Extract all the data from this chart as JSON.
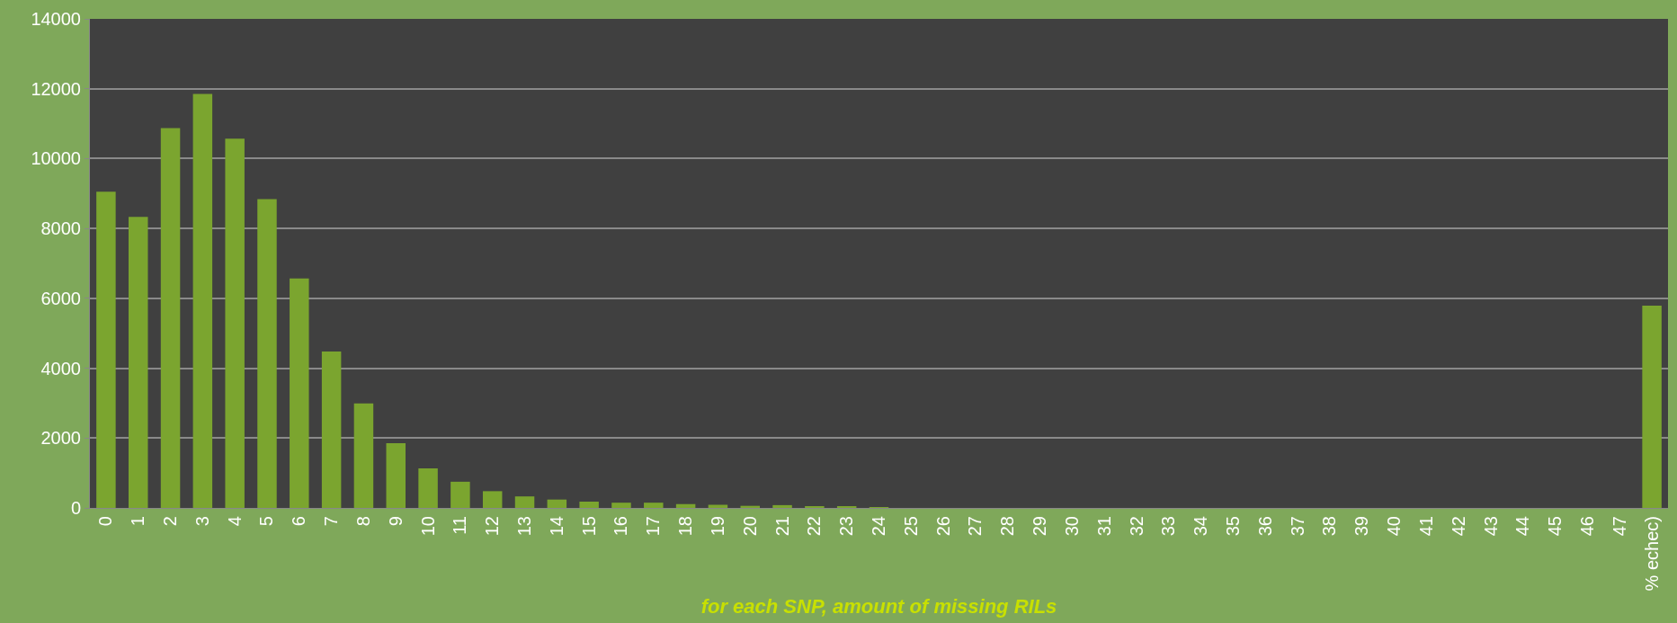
{
  "chart_data": {
    "type": "bar",
    "xlabel": "for each SNP, amount of missing RILs",
    "categories": [
      "0",
      "1",
      "2",
      "3",
      "4",
      "5",
      "6",
      "7",
      "8",
      "9",
      "10",
      "11",
      "12",
      "13",
      "14",
      "15",
      "16",
      "17",
      "18",
      "19",
      "20",
      "21",
      "22",
      "23",
      "24",
      "25",
      "26",
      "27",
      "28",
      "29",
      "30",
      "31",
      "32",
      "33",
      "34",
      "35",
      "36",
      "37",
      "38",
      "39",
      "40",
      "41",
      "42",
      "43",
      "44",
      "45",
      "46",
      "47",
      "% echec)"
    ],
    "values": [
      9050,
      8330,
      10870,
      11850,
      10570,
      8840,
      6570,
      4480,
      2990,
      1850,
      1130,
      750,
      480,
      330,
      240,
      180,
      150,
      150,
      110,
      90,
      60,
      80,
      40,
      30,
      20,
      0,
      0,
      0,
      0,
      0,
      0,
      0,
      0,
      0,
      0,
      0,
      0,
      0,
      0,
      0,
      0,
      0,
      0,
      0,
      0,
      0,
      0,
      0,
      5790
    ],
    "color": "#7ba52f",
    "ylim": [
      0,
      14000
    ],
    "yticks": [
      0,
      2000,
      4000,
      6000,
      8000,
      10000,
      12000,
      14000
    ],
    "grid": "y"
  }
}
